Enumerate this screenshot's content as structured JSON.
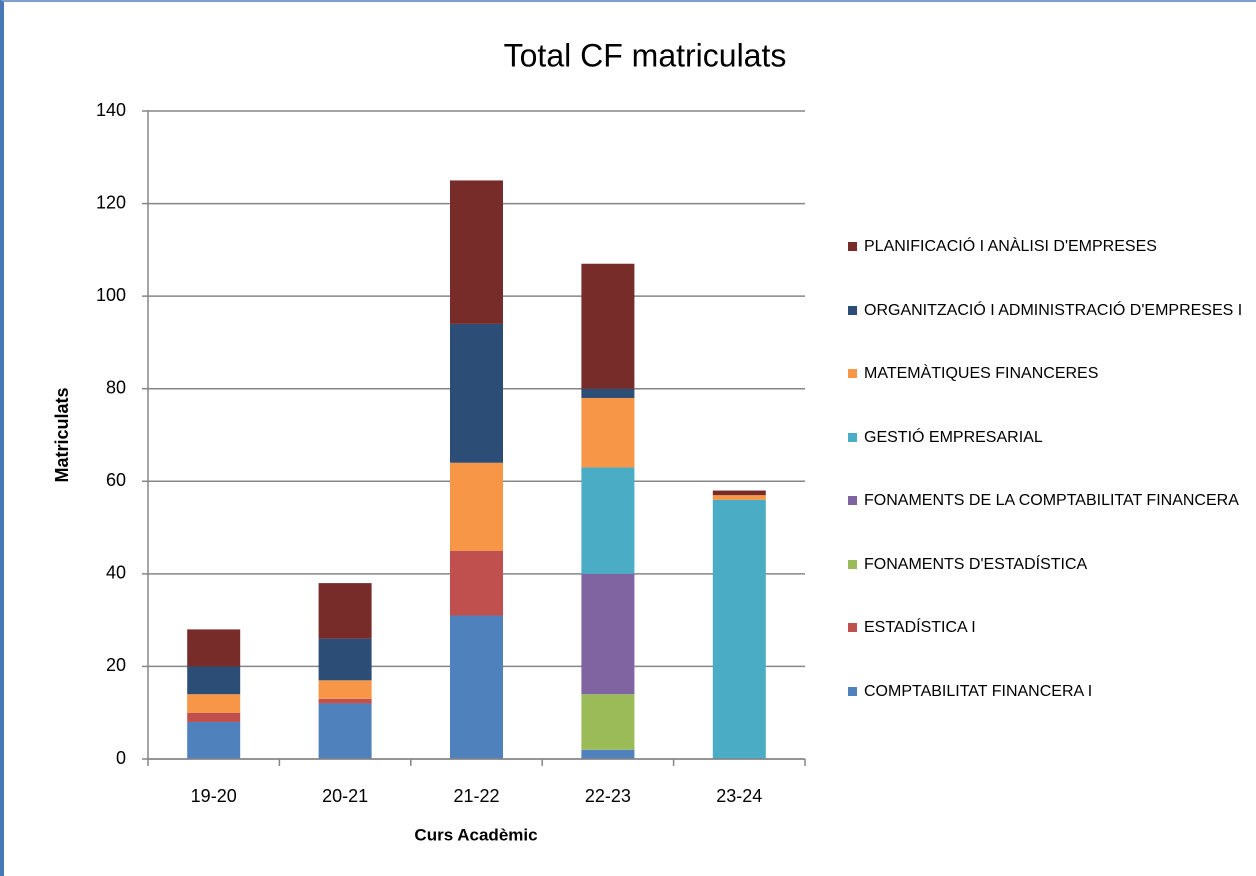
{
  "chart_data": {
    "type": "stacked_bar",
    "title": "Total  CF matriculats",
    "x_label": "Curs Acadèmic",
    "y_label": "Matriculats",
    "categories": [
      "19-20",
      "20-21",
      "21-22",
      "22-23",
      "23-24"
    ],
    "series": [
      {
        "name": "COMPTABILITAT FINANCERA I",
        "color": "#4f81bd",
        "values": [
          8,
          12,
          31,
          2,
          0
        ]
      },
      {
        "name": "ESTADÍSTICA I",
        "color": "#c0504d",
        "values": [
          2,
          1,
          14,
          0,
          0
        ]
      },
      {
        "name": "FONAMENTS D'ESTADÍSTICA",
        "color": "#9bbb59",
        "values": [
          0,
          0,
          0,
          12,
          0
        ]
      },
      {
        "name": "FONAMENTS DE LA COMPTABILITAT FINANCERA",
        "color": "#8064a2",
        "values": [
          0,
          0,
          0,
          26,
          0
        ]
      },
      {
        "name": "GESTIÓ EMPRESARIAL",
        "color": "#4bacc6",
        "values": [
          0,
          0,
          0,
          23,
          56
        ]
      },
      {
        "name": "MATEMÀTIQUES FINANCERES",
        "color": "#f79646",
        "values": [
          4,
          4,
          19,
          15,
          1
        ]
      },
      {
        "name": "ORGANITZACIÓ I ADMINISTRACIÓ D'EMPRESES I",
        "color": "#2c4d75",
        "values": [
          6,
          9,
          30,
          2,
          0
        ]
      },
      {
        "name": "PLANIFICACIÓ I ANÀLISI D'EMPRESES",
        "color": "#772c2a",
        "values": [
          8,
          12,
          31,
          27,
          1
        ]
      }
    ],
    "ylim": [
      0,
      140
    ],
    "yticks": [
      0,
      20,
      40,
      60,
      80,
      100,
      120,
      140
    ],
    "grid": true,
    "legend": "right"
  }
}
